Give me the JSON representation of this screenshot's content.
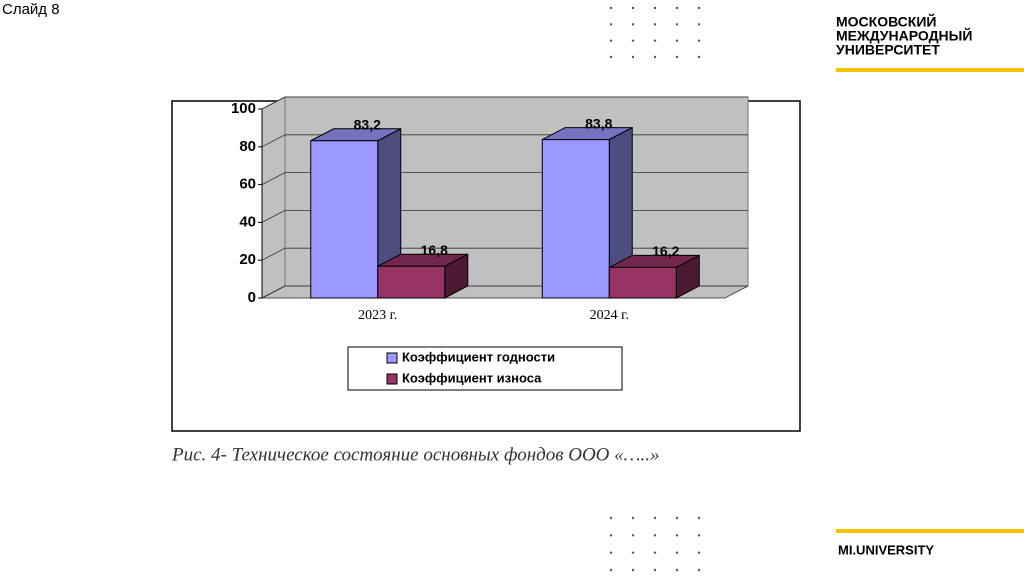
{
  "slide_label": "Слайд 8",
  "logo": {
    "lines": [
      "МОСКОВСКИЙ",
      "МЕЖДУНАРОДНЫЙ",
      "УНИВЕРСИТЕТ"
    ],
    "footer": "MI.UNIVERSITY"
  },
  "caption": "Рис. 4- Техническое состояние основных фондов ООО «…..»",
  "chart_data": {
    "type": "bar3d",
    "categories": [
      "2023 г.",
      "2024 г."
    ],
    "series": [
      {
        "name": "Коэффициент годности",
        "color": "#9999ff",
        "values": [
          83.2,
          83.8
        ],
        "value_labels": [
          "83,2",
          "83,8"
        ]
      },
      {
        "name": "Коэффициент износа",
        "color": "#993366",
        "values": [
          16.8,
          16.2
        ],
        "value_labels": [
          "16,8",
          "16,2"
        ]
      }
    ],
    "ylim": [
      0,
      100
    ],
    "yticks": [
      0,
      20,
      40,
      60,
      80,
      100
    ],
    "grid": true,
    "legend": "bottom"
  }
}
